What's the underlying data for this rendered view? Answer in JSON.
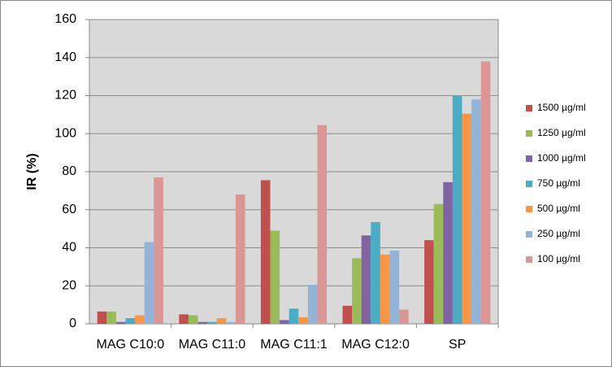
{
  "chart_data": {
    "type": "bar",
    "y_label": "IR (%)",
    "categories": [
      "MAG C10:0",
      "MAG C11:0",
      "MAG C11:1",
      "MAG C12:0",
      "SP"
    ],
    "series": [
      {
        "name": "1500 µg/ml",
        "color": "#c0504d",
        "values": [
          6.5,
          5,
          75.5,
          9.5,
          44
        ]
      },
      {
        "name": "1250 µg/ml",
        "color": "#9bbb59",
        "values": [
          6.5,
          4.5,
          49,
          34.5,
          63
        ]
      },
      {
        "name": "1000 µg/ml",
        "color": "#8064a2",
        "values": [
          1,
          1,
          2,
          46.5,
          74.5
        ]
      },
      {
        "name": "750 µg/ml",
        "color": "#4bacc6",
        "values": [
          3,
          1,
          8,
          53.5,
          120
        ]
      },
      {
        "name": "500 µg/ml",
        "color": "#f79646",
        "values": [
          4.5,
          3,
          3.5,
          36.5,
          110.5
        ]
      },
      {
        "name": "250 µg/ml",
        "color": "#95b3d7",
        "values": [
          43,
          1,
          20.5,
          38.5,
          118
        ]
      },
      {
        "name": "100 µg/ml",
        "color": "#d99694",
        "values": [
          77,
          68,
          104.5,
          7.5,
          138
        ]
      }
    ],
    "ylim": [
      0,
      160
    ],
    "yticks": [
      0,
      20,
      40,
      60,
      80,
      100,
      120,
      140,
      160
    ],
    "grid": true
  }
}
